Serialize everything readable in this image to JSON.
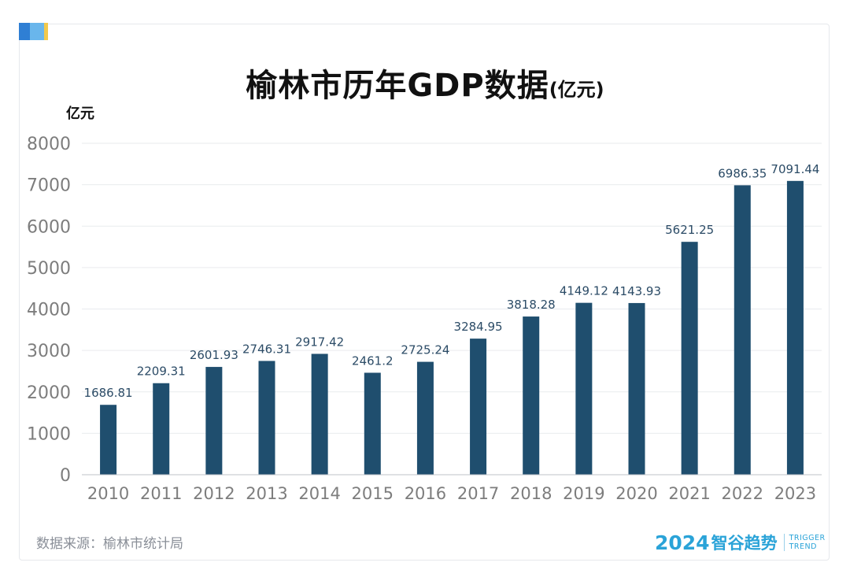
{
  "title": {
    "main": "榆林市历年GDP数据",
    "unit": "(亿元)"
  },
  "source": "数据来源：榆林市统计局",
  "brand": {
    "year": "2024",
    "name": "智谷趋势",
    "en_line1": "TRIGGER",
    "en_line2": "TREND"
  },
  "colors": {
    "bar": "#1f4e6e",
    "label": "#2b4b66",
    "axis_text": "#7d7d7d",
    "grid": "#e9ebee",
    "accent": "#2aa3d8",
    "tab_blue": "#2f7fd4",
    "tab_light": "#69b6ec",
    "tab_yellow": "#f2c94c"
  },
  "chart_data": {
    "type": "bar",
    "title": "榆林市历年GDP数据(亿元)",
    "ylabel": "亿元",
    "xlabel": "",
    "ylim": [
      0,
      8000
    ],
    "yticks": [
      0,
      1000,
      2000,
      3000,
      4000,
      5000,
      6000,
      7000,
      8000
    ],
    "grid": true,
    "categories": [
      "2010",
      "2011",
      "2012",
      "2013",
      "2014",
      "2015",
      "2016",
      "2017",
      "2018",
      "2019",
      "2020",
      "2021",
      "2022",
      "2023"
    ],
    "values": [
      1686.81,
      2209.31,
      2601.93,
      2746.31,
      2917.42,
      2461.2,
      2725.24,
      3284.95,
      3818.28,
      4149.12,
      4143.93,
      5621.25,
      6986.35,
      7091.44
    ],
    "value_labels": [
      "1686.81",
      "2209.31",
      "2601.93",
      "2746.31",
      "2917.42",
      "2461.2",
      "2725.24",
      "3284.95",
      "3818.28",
      "4149.12",
      "4143.93",
      "5621.25",
      "6986.35",
      "7091.44"
    ]
  }
}
